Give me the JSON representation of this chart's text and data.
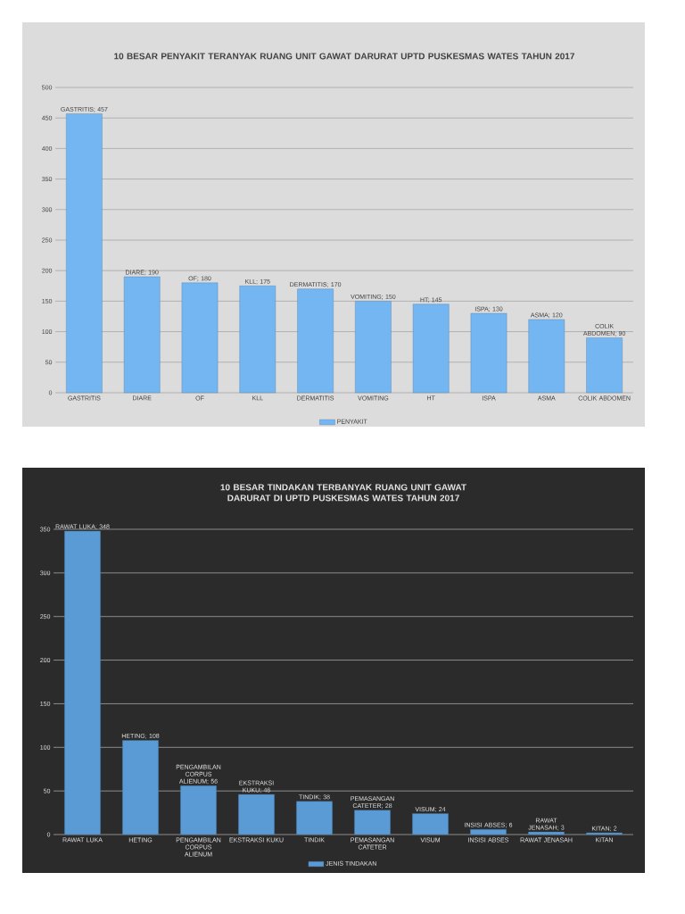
{
  "chart_data": [
    {
      "type": "bar",
      "title": "10 BESAR PENYAKIT TERANYAK RUANG UNIT GAWAT DARURAT UPTD PUSKESMAS WATES TAHUN 2017",
      "categories": [
        "GASTRITIS",
        "DIARE",
        "OF",
        "KLL",
        "DERMATITIS",
        "VOMITING",
        "HT",
        "ISPA",
        "ASMA",
        "COLIK ABDOMEN"
      ],
      "series": [
        {
          "name": "PENYAKIT",
          "color": "#74b6f2",
          "values": [
            457,
            190,
            180,
            175,
            170,
            150,
            145,
            130,
            120,
            90
          ],
          "value_labels": [
            "GASTRITIS; 457",
            "DIARE; 190",
            "OF; 180",
            "KLL; 175",
            "DERMATITIS; 170",
            "VOMITING; 150",
            "HT; 145",
            "ISPA; 130",
            "ASMA; 120",
            "COLIK ABDOMEN; 90"
          ]
        }
      ],
      "ylim": [
        0,
        500
      ],
      "yticks": [
        0,
        50,
        100,
        150,
        200,
        250,
        300,
        350,
        400,
        450,
        500
      ],
      "grid": "y",
      "legend": "bottom"
    },
    {
      "type": "bar",
      "title": "10 BESAR TINDAKAN TERBANYAK RUANG UNIT GAWAT DARURAT DI UPTD PUSKESMAS WATES TAHUN 2017",
      "categories": [
        "RAWAT LUKA",
        "HETING",
        "PENGAMBILAN CORPUS ALIENUM",
        "EKSTRAKSI KUKU",
        "TINDIK",
        "PEMASANGAN CATETER",
        "VISUM",
        "INSISI ABSES",
        "RAWAT JENASAH",
        "KITAN"
      ],
      "series": [
        {
          "name": "JENIS TINDAKAN",
          "color": "#5b9bd5",
          "values": [
            348,
            108,
            56,
            46,
            38,
            28,
            24,
            6,
            3,
            2
          ],
          "value_labels": [
            "RAWAT LUKA; 348",
            "HETING; 108",
            "PENGAMBILAN CORPUS ALIENUM; 56",
            "EKSTRAKSI KUKU; 46",
            "TINDIK; 38",
            "PEMASANGAN CATETER; 28",
            "VISUM; 24",
            "INSISI ABSES; 6",
            "RAWAT JENASAH; 3",
            "KITAN; 2"
          ]
        }
      ],
      "ylim": [
        0,
        350
      ],
      "yticks": [
        0,
        50,
        100,
        150,
        200,
        250,
        300,
        350
      ],
      "grid": "y",
      "legend": "bottom"
    }
  ]
}
